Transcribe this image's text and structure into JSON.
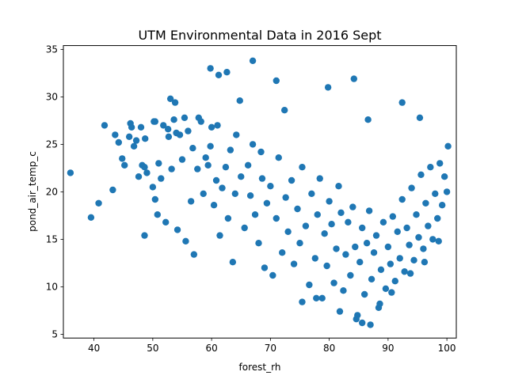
{
  "chart_data": {
    "type": "scatter",
    "title": "UTM Environmental Data in 2016 Sept",
    "xlabel": "forest_rh",
    "ylabel": "pond_air_temp_c",
    "xlim": [
      34.8,
      101.6
    ],
    "ylim": [
      4.6,
      35.4
    ],
    "xticks": [
      40,
      50,
      60,
      70,
      80,
      90,
      100
    ],
    "yticks": [
      5,
      10,
      15,
      20,
      25,
      30,
      35
    ],
    "grid": false,
    "legend": "none",
    "marker_color": "#1f77b4",
    "x": [
      36.0,
      39.5,
      40.8,
      41.8,
      43.2,
      43.6,
      44.2,
      44.8,
      45.2,
      46.0,
      46.2,
      46.8,
      47.2,
      47.6,
      48.0,
      48.2,
      48.6,
      48.7,
      49.0,
      50.0,
      50.2,
      50.4,
      50.8,
      51.0,
      51.4,
      51.8,
      52.2,
      52.6,
      52.7,
      53.0,
      53.2,
      53.6,
      53.8,
      54.2,
      54.6,
      55.0,
      55.4,
      55.6,
      56.0,
      56.5,
      56.8,
      57.0,
      57.6,
      58.2,
      58.6,
      59.0,
      59.4,
      59.8,
      60.0,
      60.4,
      60.8,
      61.0,
      61.4,
      61.8,
      62.4,
      62.8,
      63.2,
      63.6,
      64.0,
      64.2,
      65.0,
      65.6,
      66.2,
      66.6,
      67.0,
      67.4,
      68.0,
      68.6,
      69.0,
      69.4,
      70.0,
      70.4,
      71.0,
      71.4,
      72.0,
      72.6,
      73.0,
      73.6,
      74.0,
      74.6,
      75.0,
      75.4,
      76.0,
      76.6,
      77.0,
      77.6,
      78.0,
      78.4,
      78.8,
      79.2,
      79.6,
      80.0,
      80.4,
      80.8,
      81.2,
      81.6,
      82.0,
      82.4,
      82.8,
      83.2,
      83.6,
      84.0,
      84.4,
      84.8,
      85.2,
      85.6,
      86.0,
      86.4,
      86.8,
      87.2,
      87.6,
      88.0,
      88.4,
      88.8,
      89.2,
      89.6,
      90.0,
      90.4,
      90.8,
      91.2,
      91.6,
      92.0,
      92.4,
      92.8,
      93.2,
      93.6,
      94.0,
      94.4,
      94.8,
      95.2,
      95.6,
      96.0,
      96.4,
      96.8,
      97.2,
      97.6,
      98.0,
      98.4,
      98.8,
      99.2,
      99.6,
      100.0,
      100.2,
      59.8,
      61.2,
      62.6,
      67.0,
      71.0,
      84.2,
      79.8,
      92.4,
      95.4,
      86.6,
      85.6,
      87.0,
      84.6,
      75.4,
      77.8,
      81.8,
      88.6,
      90.6,
      93.8,
      96.2,
      98.6,
      72.4,
      68.4,
      64.8,
      57.8,
      54.0,
      50.4,
      46.4,
      48.6
    ],
    "y": [
      22.0,
      17.3,
      18.8,
      27.0,
      20.2,
      26.0,
      25.2,
      23.5,
      22.8,
      25.8,
      27.2,
      24.8,
      25.4,
      21.6,
      26.8,
      22.8,
      15.4,
      25.6,
      22.0,
      20.5,
      27.4,
      19.2,
      17.6,
      23.0,
      21.4,
      27.0,
      16.8,
      26.6,
      25.8,
      29.8,
      22.4,
      27.6,
      29.4,
      16.0,
      26.0,
      23.4,
      27.8,
      14.8,
      26.4,
      19.0,
      24.6,
      13.4,
      22.4,
      27.4,
      19.8,
      23.6,
      22.8,
      24.8,
      26.8,
      18.6,
      21.2,
      27.0,
      15.4,
      20.4,
      22.6,
      17.2,
      24.4,
      12.6,
      19.8,
      26.0,
      21.6,
      16.2,
      22.8,
      19.6,
      25.0,
      17.6,
      14.6,
      21.4,
      12.0,
      18.8,
      20.6,
      11.2,
      17.2,
      23.6,
      13.6,
      19.4,
      15.8,
      21.2,
      12.4,
      18.2,
      14.6,
      22.6,
      16.4,
      10.2,
      19.8,
      13.0,
      17.6,
      21.4,
      8.8,
      15.6,
      12.2,
      19.0,
      16.6,
      10.4,
      14.0,
      20.6,
      17.8,
      9.6,
      13.4,
      16.8,
      11.2,
      18.4,
      14.2,
      7.0,
      12.6,
      16.2,
      9.2,
      14.6,
      18.0,
      10.8,
      13.6,
      15.4,
      7.8,
      11.8,
      16.8,
      9.8,
      14.2,
      12.4,
      17.4,
      10.6,
      15.8,
      13.0,
      19.2,
      11.6,
      16.2,
      14.4,
      20.4,
      12.8,
      17.6,
      15.2,
      21.8,
      14.0,
      18.8,
      16.4,
      22.6,
      15.0,
      19.8,
      17.2,
      23.0,
      18.6,
      21.6,
      20.0,
      24.8,
      33.0,
      32.3,
      32.6,
      33.8,
      31.7,
      31.9,
      31.0,
      29.4,
      27.8,
      27.6,
      6.2,
      6.0,
      6.6,
      8.4,
      8.8,
      7.4,
      8.2,
      9.4,
      11.4,
      12.6,
      14.8,
      28.6,
      24.2,
      29.6,
      27.8,
      26.2,
      27.4,
      26.8,
      22.6
    ]
  }
}
